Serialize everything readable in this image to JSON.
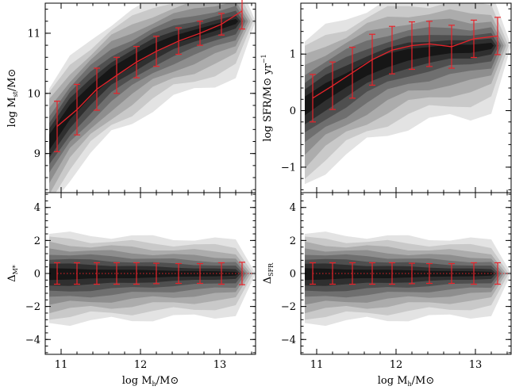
{
  "colors": {
    "error_bar": "#e8232a",
    "frame": "#000000",
    "contour_levels": [
      "#e3e3e3",
      "#c9c9c9",
      "#acacac",
      "#8e8e8e",
      "#6f6f6f",
      "#4f4f4f",
      "#2f2f2f",
      "#161616"
    ]
  },
  "x_axis": {
    "range": [
      10.8,
      13.45
    ],
    "ticks": [
      11,
      12,
      13
    ],
    "tick_labels": [
      "11",
      "12",
      "13"
    ],
    "label_main": "log M",
    "label_sub": "h",
    "label_tail": "/M⊙"
  },
  "chart_data": [
    {
      "type": "line",
      "panel": "top-left",
      "ylabel_main": "log M",
      "ylabel_sub": "st",
      "ylabel_tail": "/M⊙",
      "ylim": [
        8.35,
        11.5
      ],
      "yticks": [
        9,
        10,
        11
      ],
      "ytick_labels": [
        "9",
        "10",
        "11"
      ],
      "x": [
        10.95,
        11.2,
        11.45,
        11.7,
        11.95,
        12.2,
        12.48,
        12.75,
        13.02,
        13.28
      ],
      "y": [
        9.45,
        9.73,
        10.07,
        10.3,
        10.52,
        10.7,
        10.87,
        11.0,
        11.15,
        11.37
      ],
      "err": [
        0.42,
        0.42,
        0.35,
        0.3,
        0.26,
        0.25,
        0.22,
        0.2,
        0.18,
        0.3
      ],
      "dotted_zero": false,
      "density": {
        "x_start": 10.85,
        "x_end": 13.2,
        "centers": [
          9.2,
          9.7,
          10.05,
          10.35,
          10.55,
          10.75,
          10.9,
          11.0,
          11.1,
          11.2
        ],
        "width": 0.55
      }
    },
    {
      "type": "line",
      "panel": "top-right",
      "ylabel_main": "log SFR/M⊙ yr",
      "ylabel_sup": "−1",
      "ylim": [
        -1.45,
        1.9
      ],
      "yticks": [
        -1,
        0,
        1
      ],
      "ytick_labels": [
        "−1",
        "0",
        "1"
      ],
      "x": [
        10.95,
        11.2,
        11.45,
        11.7,
        11.95,
        12.2,
        12.42,
        12.7,
        12.98,
        13.28
      ],
      "y": [
        0.22,
        0.44,
        0.67,
        0.9,
        1.07,
        1.15,
        1.18,
        1.13,
        1.27,
        1.32
      ],
      "err": [
        0.42,
        0.42,
        0.45,
        0.45,
        0.42,
        0.42,
        0.4,
        0.38,
        0.33,
        0.33
      ],
      "dotted_zero": false,
      "density": {
        "x_start": 10.85,
        "x_end": 13.2,
        "centers": [
          0.1,
          0.35,
          0.55,
          0.75,
          0.9,
          1.0,
          1.05,
          1.1,
          1.1,
          1.15
        ],
        "width": 0.7
      }
    },
    {
      "type": "scatter",
      "panel": "bottom-left",
      "ylabel_main": "Δ",
      "ylabel_sub": "M*",
      "ylim": [
        -4.9,
        4.9
      ],
      "yticks": [
        -4,
        -2,
        0,
        2,
        4
      ],
      "ytick_labels": [
        "−4",
        "−2",
        "0",
        "2",
        "4"
      ],
      "x": [
        10.95,
        11.2,
        11.45,
        11.7,
        11.95,
        12.2,
        12.48,
        12.75,
        13.02,
        13.28
      ],
      "y": [
        0,
        0,
        0,
        0,
        0,
        0,
        0,
        0,
        0,
        0
      ],
      "err": [
        0.65,
        0.65,
        0.65,
        0.65,
        0.65,
        0.62,
        0.6,
        0.6,
        0.65,
        0.68
      ],
      "dotted_zero": true,
      "density": {
        "x_start": 10.85,
        "x_end": 13.2,
        "centers": [
          0,
          0,
          0,
          0,
          0,
          0,
          0,
          0,
          0,
          0
        ],
        "width": 1.5
      }
    },
    {
      "type": "scatter",
      "panel": "bottom-right",
      "ylabel_main": "Δ",
      "ylabel_sub": "SFR",
      "ylim": [
        -4.9,
        4.9
      ],
      "yticks": [
        -4,
        -2,
        0,
        2,
        4
      ],
      "ytick_labels": [
        "−4",
        "−2",
        "0",
        "2",
        "4"
      ],
      "x": [
        10.95,
        11.2,
        11.45,
        11.7,
        11.95,
        12.2,
        12.42,
        12.7,
        12.98,
        13.28
      ],
      "y": [
        0,
        0,
        0,
        0,
        0,
        0,
        0,
        0,
        0,
        0
      ],
      "err": [
        0.65,
        0.65,
        0.65,
        0.65,
        0.65,
        0.62,
        0.6,
        0.6,
        0.65,
        0.65
      ],
      "dotted_zero": true,
      "density": {
        "x_start": 10.85,
        "x_end": 13.2,
        "centers": [
          0,
          0,
          0,
          0,
          0,
          0,
          0,
          0,
          0,
          0
        ],
        "width": 1.5
      }
    }
  ]
}
